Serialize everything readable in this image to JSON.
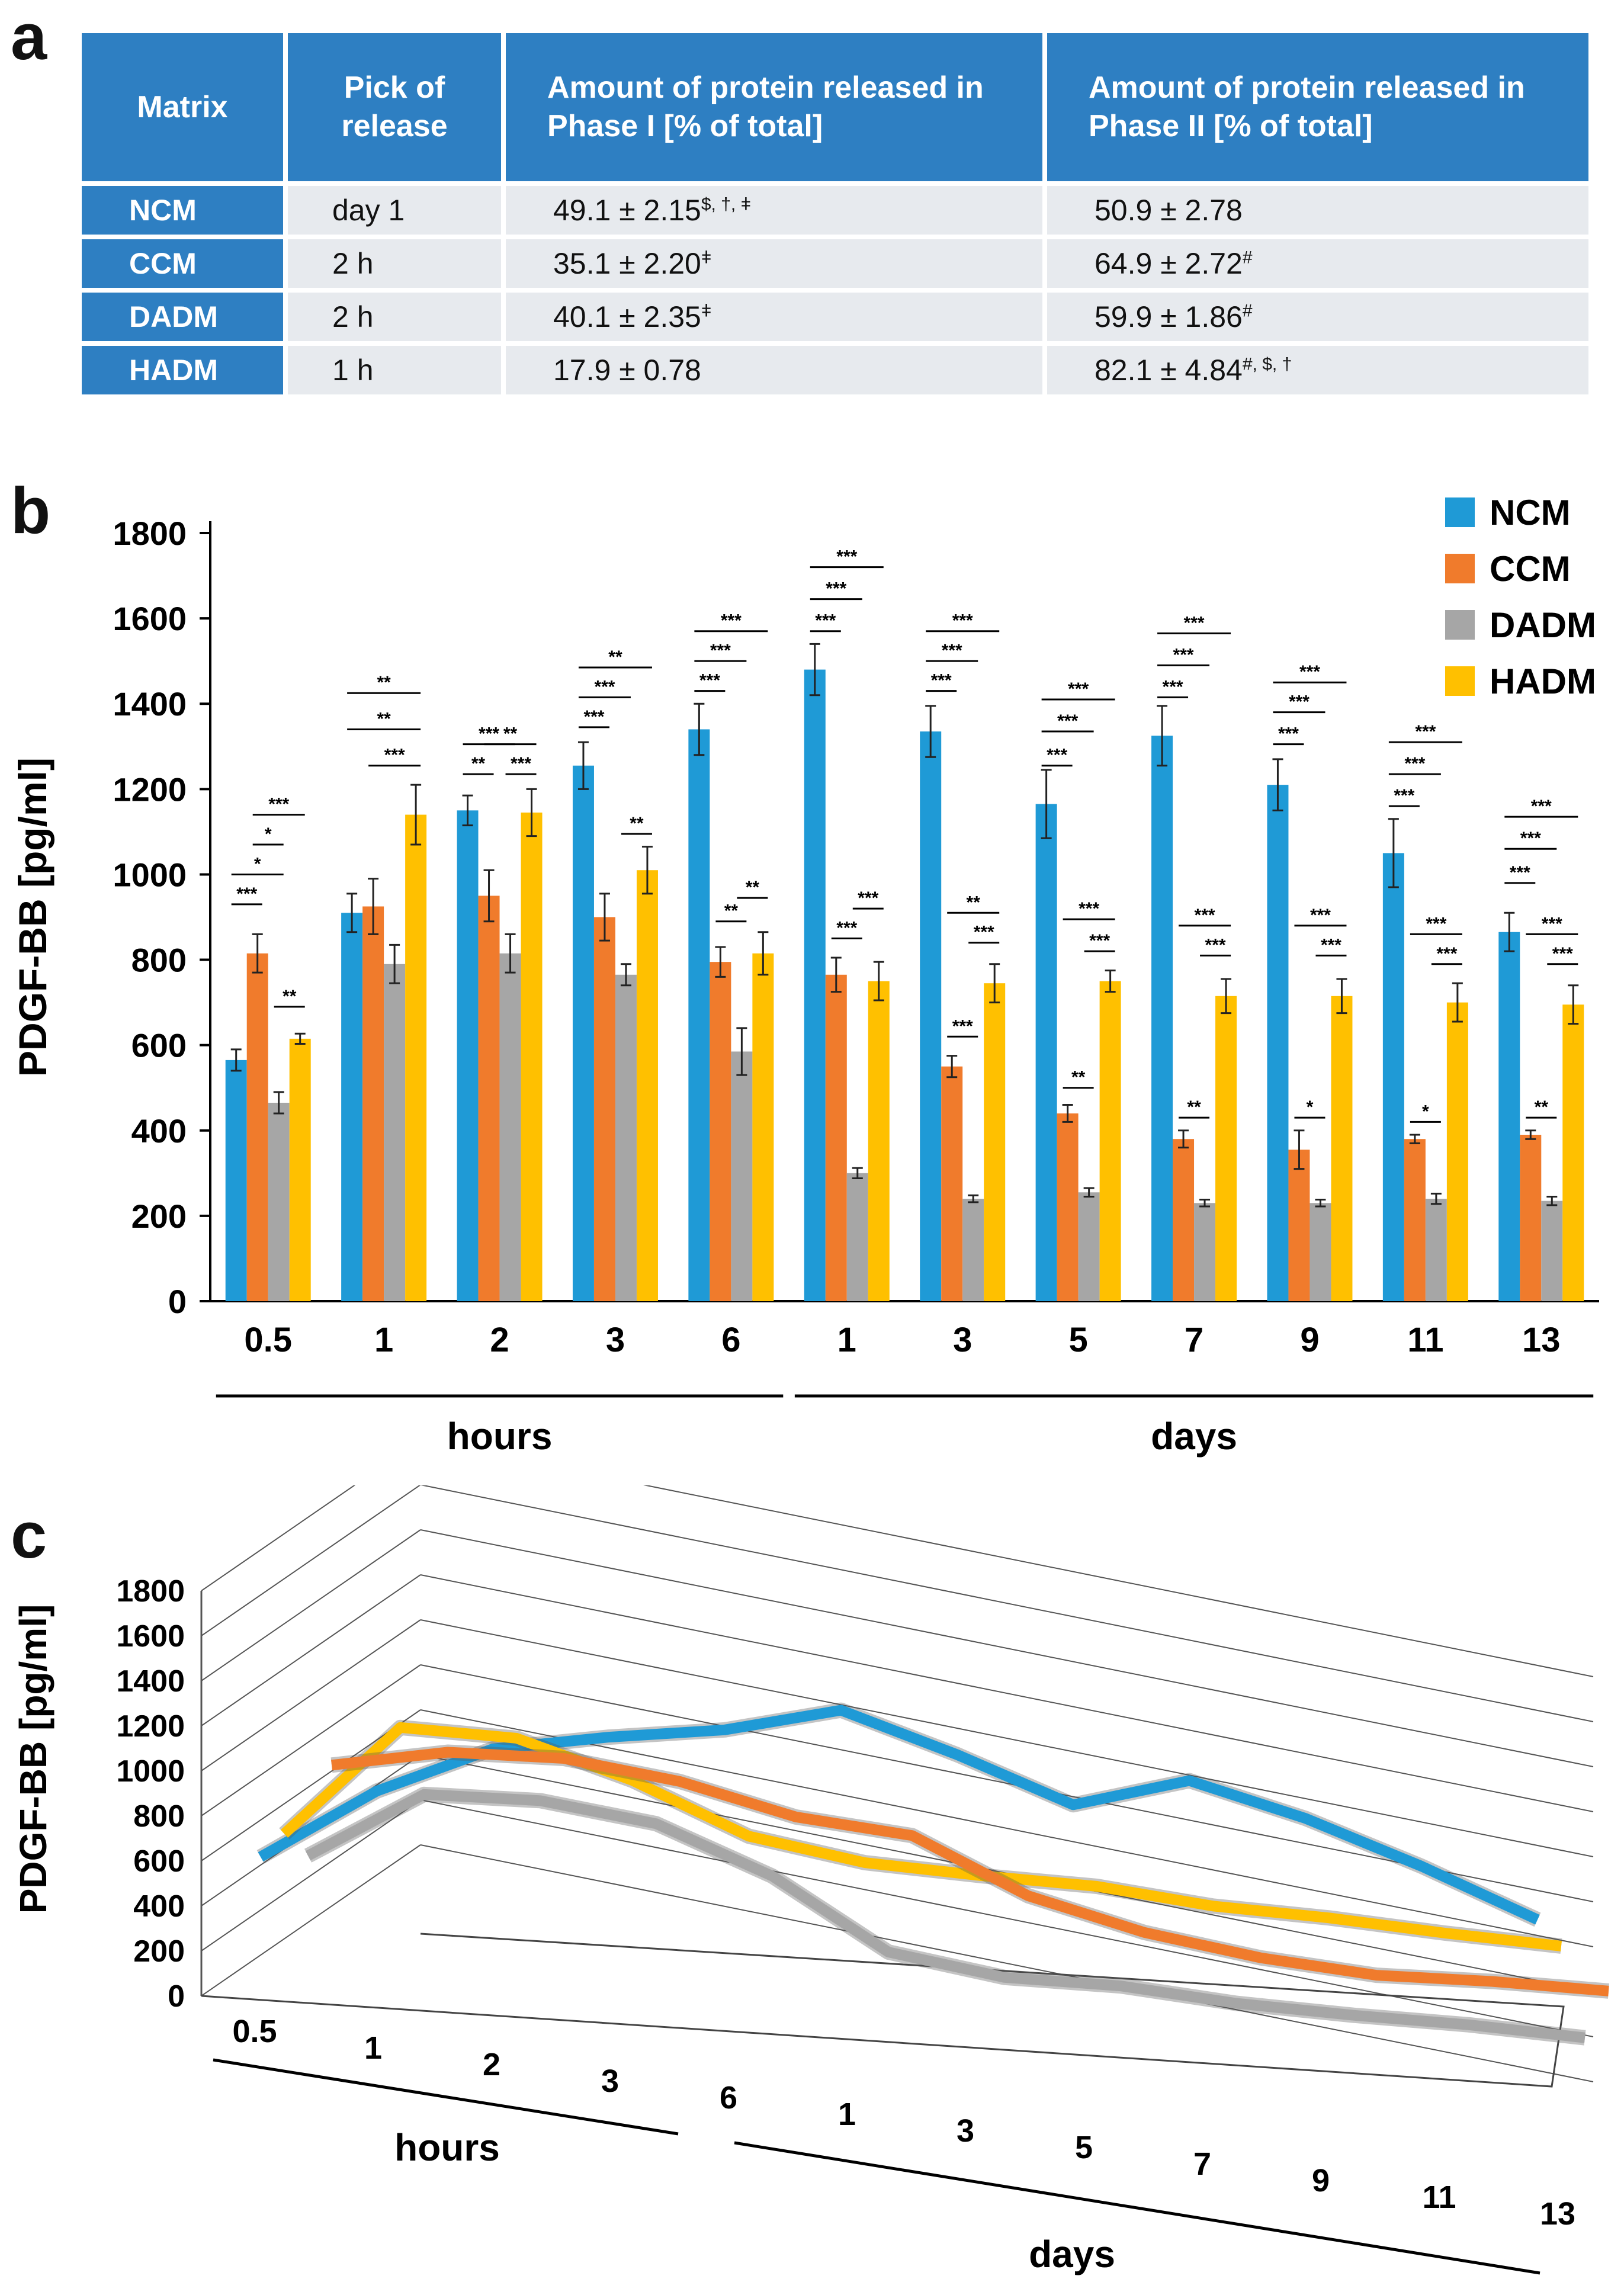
{
  "panels": {
    "a": "a",
    "b": "b",
    "c": "c"
  },
  "table": {
    "headers": [
      "Matrix",
      "Pick of release",
      "Amount of protein released in Phase I [% of total]",
      "Amount of protein released in Phase II [% of total]"
    ],
    "rows": [
      {
        "matrix": "NCM",
        "pick": "day 1",
        "phase1": "49.1 ± 2.15",
        "phase1_sup": "$, †, ǂ",
        "phase2": "50.9 ± 2.78",
        "phase2_sup": ""
      },
      {
        "matrix": "CCM",
        "pick": "2 h",
        "phase1": "35.1 ± 2.20",
        "phase1_sup": "ǂ",
        "phase2": "64.9 ± 2.72",
        "phase2_sup": "#"
      },
      {
        "matrix": "DADM",
        "pick": "2 h",
        "phase1": "40.1 ± 2.35",
        "phase1_sup": "ǂ",
        "phase2": "59.9 ± 1.86",
        "phase2_sup": "#"
      },
      {
        "matrix": "HADM",
        "pick": "1 h",
        "phase1": "17.9 ± 0.78",
        "phase1_sup": "",
        "phase2": "82.1 ± 4.84",
        "phase2_sup": "#, $, †"
      }
    ]
  },
  "colors": {
    "NCM": "#1f9ad6",
    "CCM": "#f07b2c",
    "DADM": "#a6a6a6",
    "HADM": "#ffc000"
  },
  "chart_data": [
    {
      "type": "bar",
      "ylabel": "PDGF-BB [pg/ml]",
      "ylim": [
        0,
        1800
      ],
      "yticks": [
        "0",
        "200",
        "400",
        "600",
        "800",
        "1000",
        "1200",
        "1400",
        "1600",
        "1800"
      ],
      "categories": [
        "0.5",
        "1",
        "2",
        "3",
        "6",
        "1",
        "3",
        "5",
        "7",
        "9",
        "11",
        "13"
      ],
      "groups": [
        {
          "label": "hours",
          "from": 0,
          "to": 4
        },
        {
          "label": "days",
          "from": 5,
          "to": 11
        }
      ],
      "legend": [
        "NCM",
        "CCM",
        "DADM",
        "HADM"
      ],
      "legend_position": "top-right",
      "series": [
        {
          "name": "NCM",
          "values": [
            565,
            910,
            1150,
            1255,
            1340,
            1480,
            1335,
            1165,
            1325,
            1210,
            1050,
            865
          ],
          "errors": [
            25,
            45,
            35,
            55,
            60,
            60,
            60,
            80,
            70,
            60,
            80,
            45
          ]
        },
        {
          "name": "CCM",
          "values": [
            815,
            925,
            950,
            900,
            795,
            765,
            550,
            440,
            380,
            355,
            380,
            390
          ],
          "errors": [
            45,
            65,
            60,
            55,
            35,
            40,
            25,
            20,
            20,
            45,
            10,
            10
          ]
        },
        {
          "name": "DADM",
          "values": [
            465,
            790,
            815,
            765,
            585,
            300,
            240,
            255,
            230,
            230,
            240,
            235
          ],
          "errors": [
            25,
            45,
            45,
            25,
            55,
            12,
            8,
            10,
            8,
            8,
            12,
            10
          ]
        },
        {
          "name": "HADM",
          "values": [
            615,
            1140,
            1145,
            1010,
            815,
            750,
            745,
            750,
            715,
            715,
            700,
            695
          ],
          "errors": [
            12,
            70,
            55,
            55,
            50,
            45,
            45,
            25,
            40,
            40,
            45,
            45
          ]
        }
      ],
      "significance": [
        {
          "group": 0,
          "marks": [
            {
              "text": "***",
              "from": 0,
              "to": 1,
              "y": 930
            },
            {
              "text": "*",
              "from": 0,
              "to": 2,
              "y": 1000
            },
            {
              "text": "*",
              "from": 1,
              "to": 2,
              "y": 1070
            },
            {
              "text": "***",
              "from": 1,
              "to": 3,
              "y": 1140
            },
            {
              "text": "**",
              "from": 2,
              "to": 3,
              "y": 690
            }
          ]
        },
        {
          "group": 1,
          "marks": [
            {
              "text": "***",
              "from": 1,
              "to": 3,
              "y": 1255
            },
            {
              "text": "**",
              "from": 0,
              "to": 3,
              "y": 1340
            },
            {
              "text": "**",
              "from": 0,
              "to": 3,
              "y": 1425
            }
          ]
        },
        {
          "group": 2,
          "marks": [
            {
              "text": "**",
              "from": 0,
              "to": 1,
              "y": 1235
            },
            {
              "text": "***",
              "from": 0,
              "to": 2,
              "y": 1305
            },
            {
              "text": "***",
              "from": 2,
              "to": 3,
              "y": 1235
            },
            {
              "text": "**",
              "from": 1,
              "to": 3,
              "y": 1305
            }
          ]
        },
        {
          "group": 3,
          "marks": [
            {
              "text": "***",
              "from": 0,
              "to": 1,
              "y": 1345
            },
            {
              "text": "***",
              "from": 0,
              "to": 2,
              "y": 1415
            },
            {
              "text": "**",
              "from": 0,
              "to": 3,
              "y": 1485
            },
            {
              "text": "**",
              "from": 2,
              "to": 3,
              "y": 1095
            }
          ]
        },
        {
          "group": 4,
          "marks": [
            {
              "text": "***",
              "from": 0,
              "to": 1,
              "y": 1430
            },
            {
              "text": "***",
              "from": 0,
              "to": 2,
              "y": 1500
            },
            {
              "text": "***",
              "from": 0,
              "to": 3,
              "y": 1570
            },
            {
              "text": "**",
              "from": 1,
              "to": 2,
              "y": 890
            },
            {
              "text": "**",
              "from": 2,
              "to": 3,
              "y": 945
            }
          ]
        },
        {
          "group": 5,
          "marks": [
            {
              "text": "***",
              "from": 0,
              "to": 1,
              "y": 1570
            },
            {
              "text": "***",
              "from": 0,
              "to": 2,
              "y": 1645
            },
            {
              "text": "***",
              "from": 0,
              "to": 3,
              "y": 1720
            },
            {
              "text": "***",
              "from": 1,
              "to": 2,
              "y": 850
            },
            {
              "text": "***",
              "from": 2,
              "to": 3,
              "y": 920
            }
          ]
        },
        {
          "group": 6,
          "marks": [
            {
              "text": "***",
              "from": 0,
              "to": 1,
              "y": 1430
            },
            {
              "text": "***",
              "from": 0,
              "to": 2,
              "y": 1500
            },
            {
              "text": "***",
              "from": 0,
              "to": 3,
              "y": 1570
            },
            {
              "text": "***",
              "from": 1,
              "to": 2,
              "y": 620
            },
            {
              "text": "***",
              "from": 2,
              "to": 3,
              "y": 840
            },
            {
              "text": "**",
              "from": 1,
              "to": 3,
              "y": 910
            }
          ]
        },
        {
          "group": 7,
          "marks": [
            {
              "text": "***",
              "from": 0,
              "to": 1,
              "y": 1255
            },
            {
              "text": "***",
              "from": 0,
              "to": 2,
              "y": 1335
            },
            {
              "text": "***",
              "from": 0,
              "to": 3,
              "y": 1410
            },
            {
              "text": "**",
              "from": 1,
              "to": 2,
              "y": 500
            },
            {
              "text": "***",
              "from": 2,
              "to": 3,
              "y": 820
            },
            {
              "text": "***",
              "from": 1,
              "to": 3,
              "y": 895
            }
          ]
        },
        {
          "group": 8,
          "marks": [
            {
              "text": "***",
              "from": 0,
              "to": 1,
              "y": 1415
            },
            {
              "text": "***",
              "from": 0,
              "to": 2,
              "y": 1490
            },
            {
              "text": "***",
              "from": 0,
              "to": 3,
              "y": 1565
            },
            {
              "text": "**",
              "from": 1,
              "to": 2,
              "y": 430
            },
            {
              "text": "***",
              "from": 2,
              "to": 3,
              "y": 810
            },
            {
              "text": "***",
              "from": 1,
              "to": 3,
              "y": 880
            }
          ]
        },
        {
          "group": 9,
          "marks": [
            {
              "text": "***",
              "from": 0,
              "to": 1,
              "y": 1305
            },
            {
              "text": "***",
              "from": 0,
              "to": 2,
              "y": 1380
            },
            {
              "text": "***",
              "from": 0,
              "to": 3,
              "y": 1450
            },
            {
              "text": "*",
              "from": 1,
              "to": 2,
              "y": 430
            },
            {
              "text": "***",
              "from": 2,
              "to": 3,
              "y": 810
            },
            {
              "text": "***",
              "from": 1,
              "to": 3,
              "y": 880
            }
          ]
        },
        {
          "group": 10,
          "marks": [
            {
              "text": "***",
              "from": 0,
              "to": 1,
              "y": 1160
            },
            {
              "text": "***",
              "from": 0,
              "to": 2,
              "y": 1235
            },
            {
              "text": "***",
              "from": 0,
              "to": 3,
              "y": 1310
            },
            {
              "text": "*",
              "from": 1,
              "to": 2,
              "y": 420
            },
            {
              "text": "***",
              "from": 2,
              "to": 3,
              "y": 790
            },
            {
              "text": "***",
              "from": 1,
              "to": 3,
              "y": 860
            }
          ]
        },
        {
          "group": 11,
          "marks": [
            {
              "text": "***",
              "from": 0,
              "to": 1,
              "y": 980
            },
            {
              "text": "***",
              "from": 0,
              "to": 2,
              "y": 1060
            },
            {
              "text": "***",
              "from": 0,
              "to": 3,
              "y": 1135
            },
            {
              "text": "**",
              "from": 1,
              "to": 2,
              "y": 430
            },
            {
              "text": "***",
              "from": 2,
              "to": 3,
              "y": 790
            },
            {
              "text": "***",
              "from": 1,
              "to": 3,
              "y": 860
            }
          ]
        }
      ]
    },
    {
      "type": "line",
      "ylabel": "PDGF-BB [pg/ml]",
      "ylim": [
        0,
        1800
      ],
      "yticks": [
        "0",
        "200",
        "400",
        "600",
        "800",
        "1000",
        "1200",
        "1400",
        "1600",
        "1800"
      ],
      "categories": [
        "0.5",
        "1",
        "2",
        "3",
        "6",
        "1",
        "3",
        "5",
        "7",
        "9",
        "11",
        "13"
      ],
      "groups": [
        {
          "label": "hours"
        },
        {
          "label": "days"
        }
      ],
      "series_order_back_to_front": [
        "NCM",
        "HADM",
        "DADM",
        "CCM"
      ]
    }
  ]
}
